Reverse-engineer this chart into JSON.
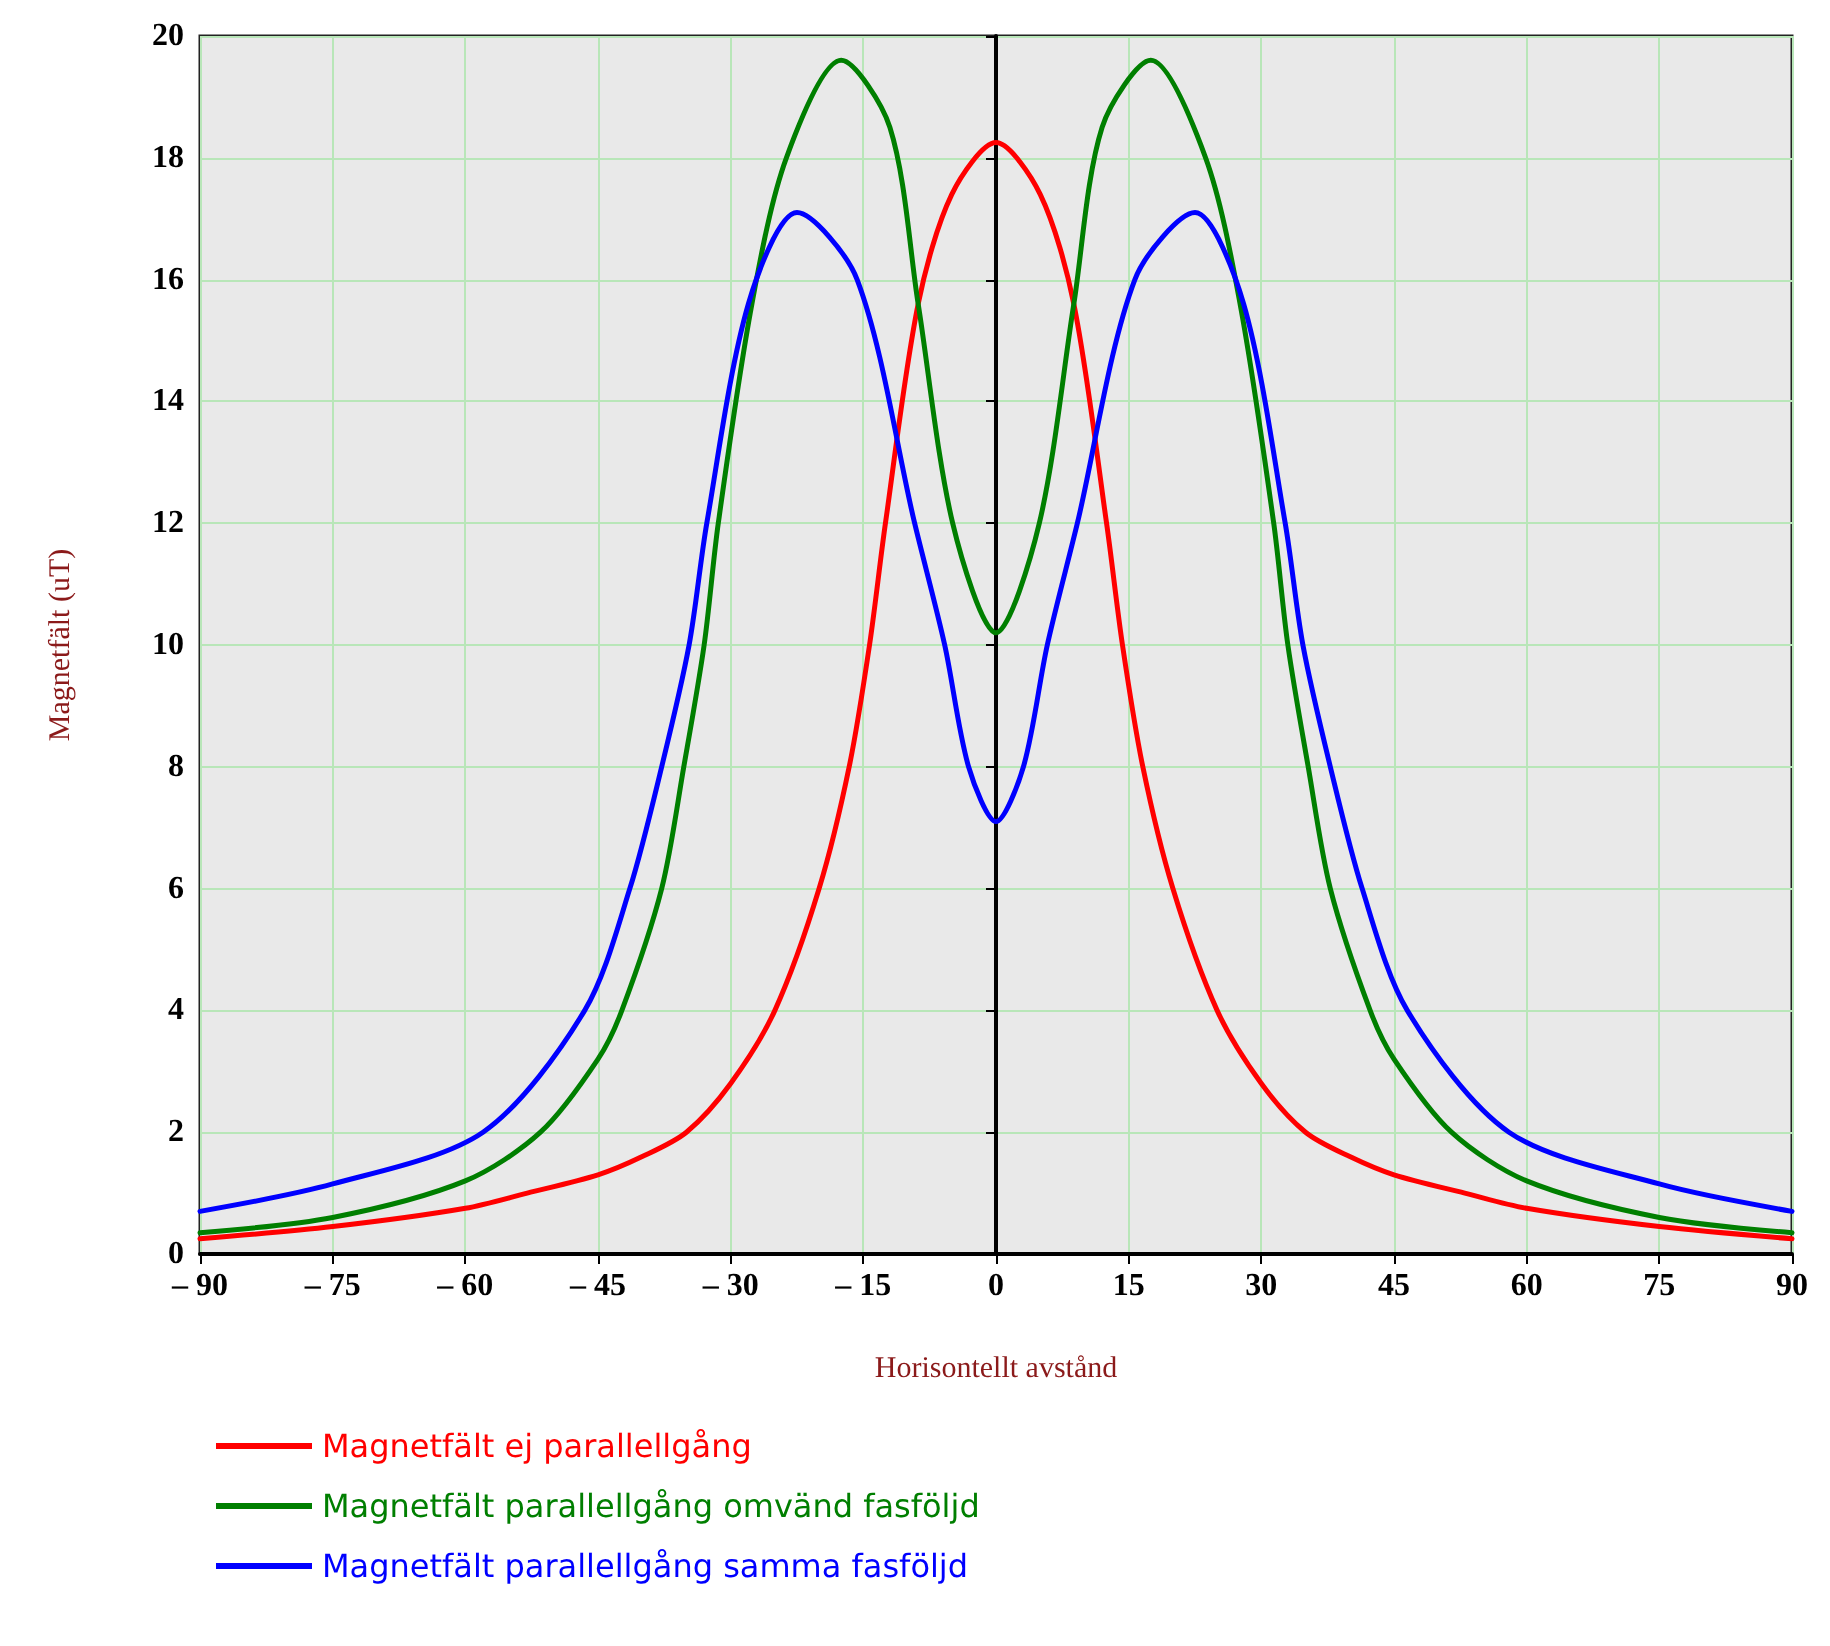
{
  "chart_data": {
    "type": "line",
    "xlabel": "Horisontellt avstånd",
    "ylabel": "Magnetfält (uT)",
    "series": [
      {
        "name": "Magnetfält ej parallellgång",
        "color": "#ff0000",
        "x": [
          -90,
          -75,
          -60,
          -53,
          -45,
          -40,
          -35,
          -30,
          -25,
          -20,
          -16.6,
          -14.3,
          -12.5,
          -8.8,
          -5,
          0,
          5,
          8.8,
          12.5,
          14.3,
          16.6,
          20,
          25,
          30,
          35,
          40,
          45,
          53,
          60,
          75,
          90
        ],
        "values": [
          0.25,
          0.45,
          0.75,
          1.0,
          1.3,
          1.6,
          2.0,
          2.8,
          4.0,
          6.0,
          8.0,
          10.0,
          12.0,
          15.6,
          17.4,
          18.25,
          17.4,
          15.6,
          12.0,
          10.0,
          8.0,
          6.0,
          4.0,
          2.8,
          2.0,
          1.6,
          1.3,
          1.0,
          0.75,
          0.45,
          0.25
        ]
      },
      {
        "name": "Magnetfält parallellgång omvänd fasföljd",
        "color": "#007f00",
        "x": [
          -90,
          -75,
          -60,
          -51.5,
          -45,
          -42.3,
          -37.8,
          -35.3,
          -33,
          -31.4,
          -27.6,
          -23.7,
          -17.5,
          -12,
          -8.8,
          -4.9,
          0,
          4.9,
          8.8,
          12,
          17.5,
          23.7,
          27.6,
          31.4,
          33,
          35.3,
          37.8,
          42.3,
          45,
          51.5,
          60,
          75,
          90
        ],
        "values": [
          0.35,
          0.6,
          1.2,
          2.0,
          3.2,
          4.0,
          6.0,
          8.0,
          10.0,
          12.0,
          15.6,
          18.0,
          19.6,
          18.5,
          15.6,
          12.0,
          10.2,
          12.0,
          15.6,
          18.5,
          19.6,
          18.0,
          15.6,
          12.0,
          10.0,
          8.0,
          6.0,
          4.0,
          3.2,
          2.0,
          1.2,
          0.6,
          0.35
        ]
      },
      {
        "name": "Magnetfält parallellgång samma fasföljd",
        "color": "#0000ff",
        "x": [
          -90,
          -75,
          -58,
          -46.5,
          -41.4,
          -37.8,
          -34.7,
          -32.7,
          -28,
          -22.5,
          -15.7,
          -9.2,
          -5.8,
          -3.1,
          0,
          3.1,
          5.8,
          9.2,
          15.7,
          22.5,
          28,
          32.7,
          34.7,
          37.8,
          41.4,
          46.5,
          58,
          75,
          90
        ],
        "values": [
          0.7,
          1.15,
          2.0,
          4.0,
          6.0,
          8.0,
          10.0,
          12.0,
          15.6,
          17.1,
          16.0,
          12.0,
          10.0,
          8.0,
          7.1,
          8.0,
          10.0,
          12.0,
          16.0,
          17.1,
          15.6,
          12.0,
          10.0,
          8.0,
          6.0,
          4.0,
          2.0,
          1.15,
          0.7
        ]
      }
    ],
    "xlim": [
      -90,
      90
    ],
    "xticks": [
      {
        "value": -90,
        "label": "– 90"
      },
      {
        "value": -75,
        "label": "– 75"
      },
      {
        "value": -60,
        "label": "– 60"
      },
      {
        "value": -45,
        "label": "– 45"
      },
      {
        "value": -30,
        "label": "– 30"
      },
      {
        "value": -15,
        "label": "– 15"
      },
      0,
      15,
      30,
      45,
      60,
      75,
      90
    ],
    "ylim": [
      0,
      20
    ],
    "yticks": [
      0,
      2,
      4,
      6,
      8,
      10,
      12,
      14,
      16,
      18,
      20
    ],
    "grid": true,
    "legend": "bottom",
    "marker": "none",
    "line_style": "solid"
  }
}
